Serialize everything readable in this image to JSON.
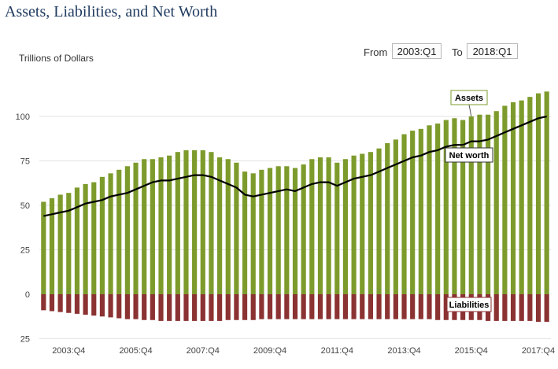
{
  "header": {
    "title": "Assets, Liabilities, and Net Worth",
    "from_label": "From",
    "from_value": "2003:Q1",
    "to_label": "To",
    "to_value": "2018:Q1"
  },
  "colors": {
    "assets": "#7d9b2c",
    "liabilities": "#8b3232",
    "net_worth": "#000000",
    "gridline": "#e3e3e3"
  },
  "chart_data": {
    "type": "bar",
    "title": "Assets, Liabilities, and Net Worth",
    "ylabel": "Trillions of Dollars",
    "xlabel": "",
    "ylim": [
      -25,
      125
    ],
    "y_ticks": [
      100,
      75,
      50,
      25,
      0,
      -25
    ],
    "y_tick_labels": [
      "100",
      "75",
      "50",
      "25",
      "0",
      "25"
    ],
    "x_tick_labels": [
      "2003:Q4",
      "2005:Q4",
      "2007:Q4",
      "2009:Q4",
      "2011:Q4",
      "2013:Q4",
      "2015:Q4",
      "2017:Q4"
    ],
    "x_tick_indices": [
      3,
      11,
      19,
      27,
      35,
      43,
      51,
      59
    ],
    "grid": true,
    "annotations": [
      "Assets",
      "Net worth",
      "Liabilities"
    ],
    "categories": [
      "2003:Q1",
      "2003:Q2",
      "2003:Q3",
      "2003:Q4",
      "2004:Q1",
      "2004:Q2",
      "2004:Q3",
      "2004:Q4",
      "2005:Q1",
      "2005:Q2",
      "2005:Q3",
      "2005:Q4",
      "2006:Q1",
      "2006:Q2",
      "2006:Q3",
      "2006:Q4",
      "2007:Q1",
      "2007:Q2",
      "2007:Q3",
      "2007:Q4",
      "2008:Q1",
      "2008:Q2",
      "2008:Q3",
      "2008:Q4",
      "2009:Q1",
      "2009:Q2",
      "2009:Q3",
      "2009:Q4",
      "2010:Q1",
      "2010:Q2",
      "2010:Q3",
      "2010:Q4",
      "2011:Q1",
      "2011:Q2",
      "2011:Q3",
      "2011:Q4",
      "2012:Q1",
      "2012:Q2",
      "2012:Q3",
      "2012:Q4",
      "2013:Q1",
      "2013:Q2",
      "2013:Q3",
      "2013:Q4",
      "2014:Q1",
      "2014:Q2",
      "2014:Q3",
      "2014:Q4",
      "2015:Q1",
      "2015:Q2",
      "2015:Q3",
      "2015:Q4",
      "2016:Q1",
      "2016:Q2",
      "2016:Q3",
      "2016:Q4",
      "2017:Q1",
      "2017:Q2",
      "2017:Q3",
      "2017:Q4",
      "2018:Q1"
    ],
    "series": [
      {
        "name": "Assets",
        "type": "bar",
        "values": [
          52,
          54,
          56,
          57,
          60,
          62,
          63,
          66,
          68,
          70,
          72,
          74,
          76,
          76,
          77,
          78,
          80,
          81,
          81,
          81,
          80,
          77,
          76,
          74,
          69,
          68,
          70,
          71,
          72,
          72,
          71,
          73,
          76,
          77,
          77,
          74,
          76,
          78,
          79,
          80,
          82,
          85,
          87,
          90,
          92,
          93,
          95,
          96,
          98,
          99,
          98,
          100,
          101,
          101,
          103,
          106,
          108,
          109,
          111,
          113,
          114
        ]
      },
      {
        "name": "Liabilities",
        "type": "bar",
        "values": [
          -9,
          -9.5,
          -10,
          -10.5,
          -11,
          -11.5,
          -12,
          -12.5,
          -13,
          -13.5,
          -14,
          -14,
          -14.5,
          -14.5,
          -15,
          -15,
          -15,
          -15,
          -15,
          -15,
          -15,
          -15,
          -14.5,
          -14.5,
          -14.5,
          -14.5,
          -14,
          -14,
          -14,
          -14,
          -14,
          -14,
          -14,
          -14,
          -14,
          -14,
          -14,
          -14,
          -14,
          -14,
          -14,
          -14,
          -14,
          -14,
          -14,
          -14,
          -14,
          -14.5,
          -14.5,
          -14.5,
          -14.5,
          -14.5,
          -14.5,
          -15,
          -15,
          -15,
          -15,
          -15,
          -15,
          -15.5,
          -15.5
        ]
      },
      {
        "name": "Net worth",
        "type": "line",
        "values": [
          44,
          45,
          46,
          47,
          49,
          51,
          52,
          53,
          55,
          56,
          57,
          59,
          61,
          63,
          64,
          64,
          65,
          66,
          67,
          67,
          66,
          64,
          62,
          60,
          56,
          55,
          56,
          57,
          58,
          59,
          58,
          60,
          62,
          63,
          63,
          61,
          63,
          65,
          66,
          67,
          69,
          71,
          73,
          75,
          77,
          78,
          80,
          81,
          83,
          84,
          84,
          86,
          86,
          87,
          89,
          91,
          93,
          95,
          97,
          99,
          100
        ]
      }
    ]
  }
}
